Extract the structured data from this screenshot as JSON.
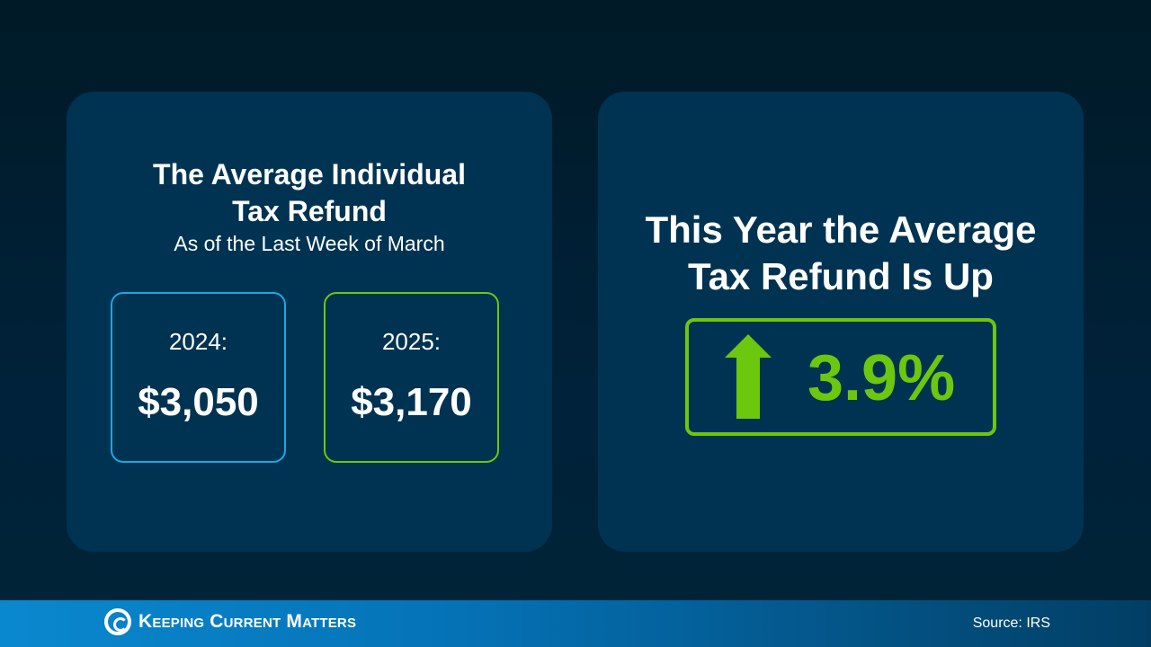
{
  "colors": {
    "background": "#001a27",
    "card": "#003352",
    "accent_blue": "#1aa7e6",
    "accent_green": "#6cc70f"
  },
  "left_card": {
    "title_line1": "The Average Individual",
    "title_line2": "Tax Refund",
    "subtitle": "As of the Last Week of March",
    "years": [
      {
        "label": "2024:",
        "value": "$3,050"
      },
      {
        "label": "2025:",
        "value": "$3,170"
      }
    ]
  },
  "right_card": {
    "title_line1": "This Year the Average",
    "title_line2": "Tax Refund Is Up",
    "icon": "up-arrow-icon",
    "change": "3.9%"
  },
  "footer": {
    "logo_text": "Keeping Current Matters",
    "source": "Source: IRS"
  }
}
